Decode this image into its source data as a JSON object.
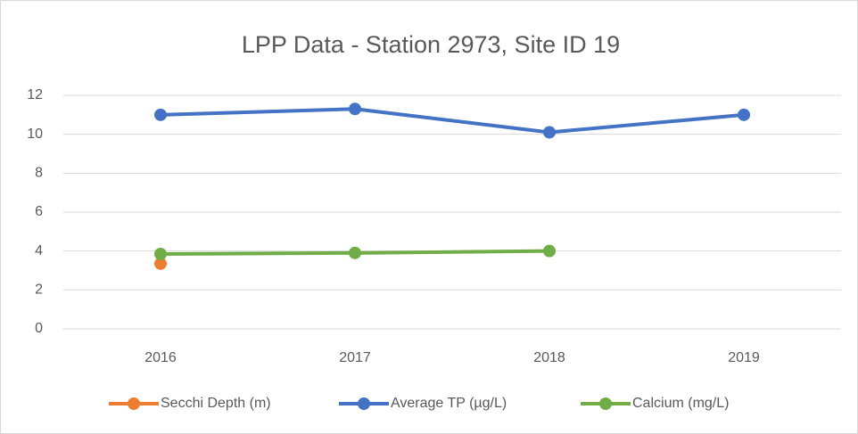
{
  "chart_data": {
    "type": "line",
    "title": "LPP Data - Station 2973, Site ID 19",
    "categories": [
      "2016",
      "2017",
      "2018",
      "2019"
    ],
    "series": [
      {
        "name": "Secchi Depth (m)",
        "color": "#ed7d31",
        "values": [
          3.35,
          null,
          null,
          null
        ]
      },
      {
        "name": "Average TP (µg/L)",
        "color": "#4472c4",
        "values": [
          11.0,
          11.3,
          10.1,
          11.0
        ]
      },
      {
        "name": "Calcium (mg/L)",
        "color": "#70ad47",
        "values": [
          3.85,
          3.9,
          4.0,
          null
        ]
      }
    ],
    "ylim": [
      0,
      12
    ],
    "yticks": [
      0,
      2,
      4,
      6,
      8,
      10,
      12
    ],
    "grid": true,
    "legend": "bottom"
  }
}
